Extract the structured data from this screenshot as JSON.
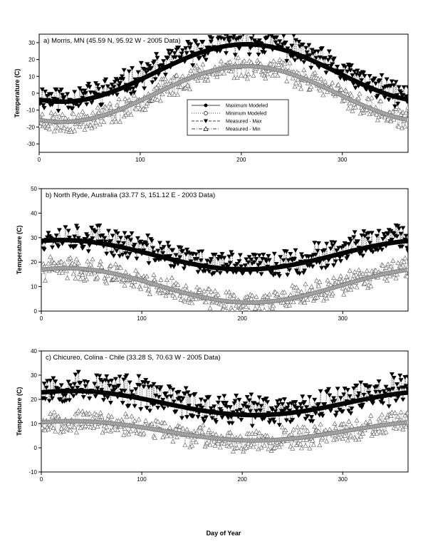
{
  "figure": {
    "xlabel": "Day of Year"
  },
  "legend": {
    "entries": [
      {
        "label": "Maximum Modeled",
        "marker": "filled-circle",
        "line": "solid"
      },
      {
        "label": "Minimum Modeled",
        "marker": "open-circle",
        "line": "dotted"
      },
      {
        "label": "Measured - Max",
        "marker": "filled-triangle-down",
        "line": "dashed"
      },
      {
        "label": "Measured - Min",
        "marker": "open-triangle-up",
        "line": "dash-dot"
      }
    ]
  },
  "chart_data": [
    {
      "type": "scatter",
      "title": "a) Morris, MN (45.59 N, 95.92 W - 2005 Data)",
      "xlabel": "",
      "ylabel": "Temperature (C)",
      "xlim": [
        0,
        365
      ],
      "ylim": [
        -35,
        35
      ],
      "xticks": [
        0,
        100,
        200,
        300
      ],
      "yticks": [
        -30,
        -20,
        -10,
        0,
        10,
        20,
        30
      ],
      "legend": "center",
      "grid": false,
      "series": [
        {
          "name": "Maximum Modeled",
          "model": {
            "mean": 12.0,
            "amplitude": 17.0,
            "peak_day": 205
          },
          "x": [
            0,
            30,
            60,
            90,
            120,
            150,
            180,
            205,
            240,
            270,
            300,
            330,
            365
          ],
          "y": [
            -4.7,
            -2.5,
            3.5,
            11.5,
            19.5,
            25.5,
            28.7,
            29.0,
            27.0,
            21.5,
            13.5,
            5.0,
            -4.5
          ]
        },
        {
          "name": "Minimum Modeled",
          "model": {
            "mean": -0.5,
            "amplitude": 16.5,
            "peak_day": 205
          },
          "x": [
            0,
            30,
            60,
            90,
            120,
            150,
            180,
            205,
            240,
            270,
            300,
            330,
            365
          ],
          "y": [
            -16.5,
            -14.5,
            -8.5,
            -1.0,
            6.5,
            12.5,
            15.5,
            16.0,
            14.0,
            8.5,
            0.5,
            -8.0,
            -16.5
          ]
        },
        {
          "name": "Measured - Max",
          "noise": 7,
          "seed": 11
        },
        {
          "name": "Measured - Min",
          "noise": 6,
          "seed": 23
        }
      ]
    },
    {
      "type": "scatter",
      "title": "b) North Ryde, Australia (33.77 S, 151.12 E - 2003 Data)",
      "xlabel": "",
      "ylabel": "Temperature (C)",
      "xlim": [
        0,
        365
      ],
      "ylim": [
        0,
        50
      ],
      "xticks": [
        0,
        100,
        200,
        300
      ],
      "yticks": [
        0,
        10,
        20,
        30,
        40,
        50
      ],
      "legend": "none",
      "grid": false,
      "series": [
        {
          "name": "Maximum Modeled",
          "model": {
            "mean": 23.0,
            "amplitude": 6.0,
            "peak_day": 20
          },
          "x": [
            0,
            30,
            60,
            90,
            120,
            150,
            180,
            200,
            240,
            270,
            300,
            330,
            365
          ],
          "y": [
            28.5,
            29.0,
            27.5,
            25.0,
            22.0,
            19.0,
            17.5,
            17.0,
            19.5,
            22.5,
            25.5,
            27.5,
            28.5
          ]
        },
        {
          "name": "Minimum Modeled",
          "model": {
            "mean": 10.5,
            "amplitude": 7.0,
            "peak_day": 25
          },
          "x": [
            0,
            30,
            60,
            90,
            120,
            150,
            180,
            205,
            240,
            270,
            300,
            330,
            365
          ],
          "y": [
            16.0,
            17.5,
            16.0,
            13.0,
            9.5,
            6.0,
            4.0,
            3.5,
            6.0,
            9.5,
            13.0,
            15.5,
            16.5
          ]
        },
        {
          "name": "Measured - Max",
          "noise": 5,
          "seed": 37
        },
        {
          "name": "Measured - Min",
          "noise": 4,
          "seed": 41
        }
      ]
    },
    {
      "type": "scatter",
      "title": "c) Chicureo, Colina - Chile (33.28 S, 70.63 W - 2005 Data)",
      "xlabel": "Day of Year",
      "ylabel": "Temperature (C)",
      "xlim": [
        0,
        365
      ],
      "ylim": [
        -10,
        40
      ],
      "xticks": [
        0,
        100,
        200,
        300
      ],
      "yticks": [
        -10,
        0,
        10,
        20,
        30,
        40
      ],
      "legend": "none",
      "grid": false,
      "series": [
        {
          "name": "Maximum Modeled",
          "model": {
            "mean": 18.5,
            "amplitude": 5.0,
            "peak_day": 30
          },
          "x": [
            0,
            30,
            60,
            90,
            120,
            150,
            180,
            210,
            240,
            270,
            300,
            330,
            365
          ],
          "y": [
            22.0,
            23.5,
            23.0,
            21.0,
            18.0,
            15.5,
            14.0,
            14.0,
            15.0,
            17.0,
            19.5,
            21.5,
            23.0
          ]
        },
        {
          "name": "Minimum Modeled",
          "model": {
            "mean": 7.0,
            "amplitude": 4.0,
            "peak_day": 30
          },
          "x": [
            0,
            30,
            60,
            90,
            120,
            150,
            180,
            210,
            240,
            270,
            300,
            330,
            365
          ],
          "y": [
            10.0,
            11.0,
            10.5,
            8.5,
            6.0,
            4.0,
            3.0,
            3.0,
            4.0,
            5.5,
            7.5,
            9.5,
            10.5
          ]
        },
        {
          "name": "Measured - Max",
          "noise": 6,
          "seed": 53
        },
        {
          "name": "Measured - Min",
          "noise": 4,
          "seed": 67
        }
      ]
    }
  ]
}
